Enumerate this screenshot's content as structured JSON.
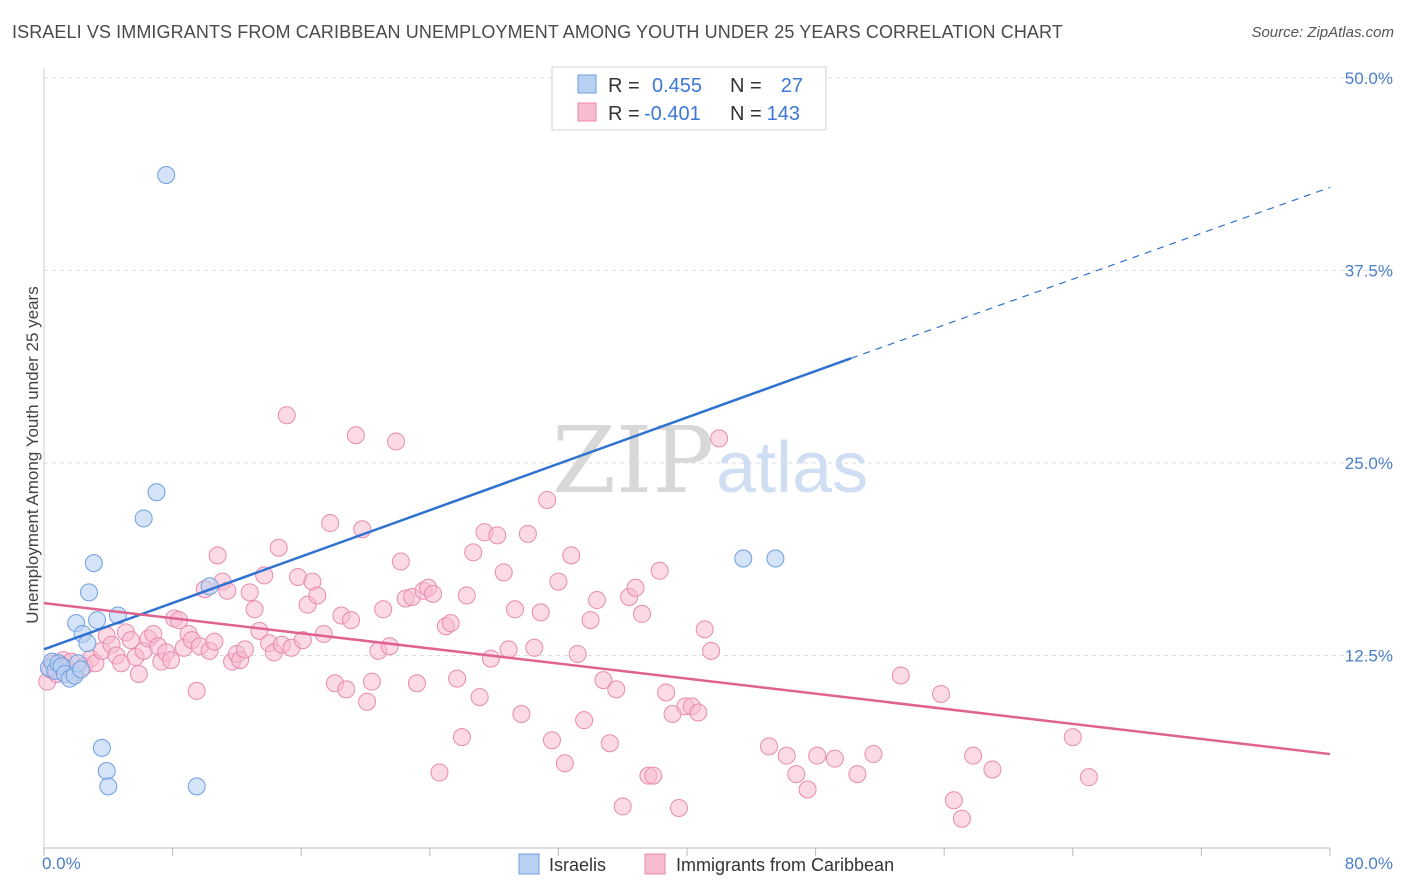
{
  "title": "ISRAELI VS IMMIGRANTS FROM CARIBBEAN UNEMPLOYMENT AMONG YOUTH UNDER 25 YEARS CORRELATION CHART",
  "source": "Source: ZipAtlas.com",
  "watermark": {
    "zip": "ZIP",
    "atlas": "atlas"
  },
  "colors": {
    "israelis_fill": "#b8d0f2",
    "israelis_stroke": "#6f9ee0",
    "israelis_line": "#2f72d0",
    "caribbean_fill": "#f7bcd0",
    "caribbean_stroke": "#e98aae",
    "caribbean_line": "#e0628f",
    "grid": "#dddddd",
    "tick_text": "#4a7fc8"
  },
  "legend": {
    "rows": [
      {
        "r_label": "R =",
        "r_value": "0.455",
        "n_label": "N =",
        "n_value": "27"
      },
      {
        "r_label": "R =",
        "r_value": "-0.401",
        "n_label": "N =",
        "n_value": "143"
      }
    ]
  },
  "chart_data": {
    "type": "scatter",
    "title": "ISRAELI VS IMMIGRANTS FROM CARIBBEAN UNEMPLOYMENT AMONG YOUTH UNDER 25 YEARS CORRELATION CHART",
    "xlabel": "",
    "ylabel": "Unemployment Among Youth under 25 years",
    "xlim": [
      0,
      80
    ],
    "ylim": [
      0,
      50
    ],
    "x_ticks": [
      "0.0%",
      "80.0%"
    ],
    "y_ticks": [
      {
        "value": 12.5,
        "label": "12.5%"
      },
      {
        "value": 25,
        "label": "25.0%"
      },
      {
        "value": 37.5,
        "label": "37.5%"
      },
      {
        "value": 50,
        "label": "50.0%"
      }
    ],
    "grid": true,
    "legend_position": "top-center",
    "series": [
      {
        "name": "Israelis",
        "r": 0.455,
        "n": 27,
        "trend": {
          "x0": 0,
          "y0": 12.9,
          "x1": 50.2,
          "y1": 31.8,
          "dash_to_x": 80,
          "dash_to_y": 42.9
        },
        "points": [
          [
            0.3,
            11.7
          ],
          [
            0.5,
            12.1
          ],
          [
            0.7,
            11.5
          ],
          [
            0.9,
            12.0
          ],
          [
            1.1,
            11.8
          ],
          [
            1.3,
            11.3
          ],
          [
            1.6,
            11.0
          ],
          [
            1.9,
            11.2
          ],
          [
            2.1,
            12.0
          ],
          [
            2.3,
            11.6
          ],
          [
            2.0,
            14.6
          ],
          [
            2.4,
            13.9
          ],
          [
            2.7,
            13.3
          ],
          [
            2.8,
            16.6
          ],
          [
            3.1,
            18.5
          ],
          [
            3.3,
            14.8
          ],
          [
            3.6,
            6.5
          ],
          [
            3.9,
            5.0
          ],
          [
            4.0,
            4.0
          ],
          [
            4.6,
            15.1
          ],
          [
            6.2,
            21.4
          ],
          [
            7.0,
            23.1
          ],
          [
            7.6,
            43.7
          ],
          [
            9.5,
            4.0
          ],
          [
            10.3,
            17.0
          ],
          [
            43.5,
            18.8
          ],
          [
            45.5,
            18.8
          ]
        ]
      },
      {
        "name": "Immigrants from Caribbean",
        "r": -0.401,
        "n": 143,
        "trend": {
          "x0": 0,
          "y0": 15.9,
          "x1": 80,
          "y1": 6.1
        },
        "points": [
          [
            0.2,
            10.8
          ],
          [
            0.4,
            11.6
          ],
          [
            0.6,
            12.0
          ],
          [
            0.8,
            11.3
          ],
          [
            1.0,
            11.9
          ],
          [
            1.2,
            12.2
          ],
          [
            1.4,
            11.7
          ],
          [
            1.7,
            12.1
          ],
          [
            2.0,
            11.4
          ],
          [
            2.5,
            11.8
          ],
          [
            2.9,
            12.3
          ],
          [
            3.2,
            12.0
          ],
          [
            3.6,
            12.8
          ],
          [
            3.9,
            13.8
          ],
          [
            4.2,
            13.2
          ],
          [
            4.5,
            12.5
          ],
          [
            4.8,
            12.0
          ],
          [
            5.1,
            14.0
          ],
          [
            5.4,
            13.5
          ],
          [
            5.7,
            12.4
          ],
          [
            5.9,
            11.3
          ],
          [
            6.2,
            12.8
          ],
          [
            6.5,
            13.6
          ],
          [
            6.8,
            13.9
          ],
          [
            7.1,
            13.1
          ],
          [
            7.3,
            12.1
          ],
          [
            7.6,
            12.7
          ],
          [
            7.9,
            12.2
          ],
          [
            8.1,
            14.9
          ],
          [
            8.4,
            14.8
          ],
          [
            8.7,
            13.0
          ],
          [
            9.0,
            13.9
          ],
          [
            9.2,
            13.5
          ],
          [
            9.5,
            10.2
          ],
          [
            9.7,
            13.1
          ],
          [
            10.0,
            16.8
          ],
          [
            10.3,
            12.8
          ],
          [
            10.6,
            13.4
          ],
          [
            10.8,
            19.0
          ],
          [
            11.1,
            17.3
          ],
          [
            11.4,
            16.7
          ],
          [
            11.7,
            12.1
          ],
          [
            12.0,
            12.6
          ],
          [
            12.2,
            12.2
          ],
          [
            12.5,
            12.9
          ],
          [
            12.8,
            16.6
          ],
          [
            13.1,
            15.5
          ],
          [
            13.4,
            14.1
          ],
          [
            13.7,
            17.7
          ],
          [
            14.0,
            13.3
          ],
          [
            14.3,
            12.7
          ],
          [
            14.6,
            19.5
          ],
          [
            14.8,
            13.2
          ],
          [
            15.1,
            28.1
          ],
          [
            15.4,
            13.0
          ],
          [
            15.8,
            17.6
          ],
          [
            16.1,
            13.5
          ],
          [
            16.4,
            15.8
          ],
          [
            16.7,
            17.3
          ],
          [
            17.0,
            16.4
          ],
          [
            17.4,
            13.9
          ],
          [
            17.8,
            21.1
          ],
          [
            18.1,
            10.7
          ],
          [
            18.5,
            15.1
          ],
          [
            18.8,
            10.3
          ],
          [
            19.1,
            14.8
          ],
          [
            19.4,
            26.8
          ],
          [
            19.8,
            20.7
          ],
          [
            20.1,
            9.5
          ],
          [
            20.4,
            10.8
          ],
          [
            20.8,
            12.8
          ],
          [
            21.1,
            15.5
          ],
          [
            21.5,
            13.1
          ],
          [
            21.9,
            26.4
          ],
          [
            22.2,
            18.6
          ],
          [
            22.5,
            16.2
          ],
          [
            22.9,
            16.3
          ],
          [
            23.2,
            10.7
          ],
          [
            23.6,
            16.7
          ],
          [
            23.9,
            16.9
          ],
          [
            24.2,
            16.5
          ],
          [
            24.6,
            4.9
          ],
          [
            25.0,
            14.4
          ],
          [
            25.3,
            14.6
          ],
          [
            25.7,
            11.0
          ],
          [
            26.0,
            7.2
          ],
          [
            26.3,
            16.4
          ],
          [
            26.7,
            19.2
          ],
          [
            27.1,
            9.8
          ],
          [
            27.4,
            20.5
          ],
          [
            27.8,
            12.3
          ],
          [
            28.2,
            20.3
          ],
          [
            28.6,
            17.9
          ],
          [
            28.9,
            12.9
          ],
          [
            29.3,
            15.5
          ],
          [
            29.7,
            8.7
          ],
          [
            30.1,
            20.4
          ],
          [
            30.5,
            13.0
          ],
          [
            30.9,
            15.3
          ],
          [
            31.3,
            22.6
          ],
          [
            31.6,
            7.0
          ],
          [
            32.0,
            17.3
          ],
          [
            32.4,
            5.5
          ],
          [
            32.8,
            19.0
          ],
          [
            33.2,
            12.6
          ],
          [
            33.6,
            8.3
          ],
          [
            34.0,
            14.8
          ],
          [
            34.4,
            16.1
          ],
          [
            34.8,
            10.9
          ],
          [
            35.2,
            6.8
          ],
          [
            35.6,
            10.3
          ],
          [
            36.0,
            2.7
          ],
          [
            36.4,
            16.3
          ],
          [
            36.8,
            16.9
          ],
          [
            37.2,
            15.2
          ],
          [
            37.6,
            4.7
          ],
          [
            37.9,
            4.7
          ],
          [
            38.3,
            18.0
          ],
          [
            38.7,
            10.1
          ],
          [
            39.1,
            8.7
          ],
          [
            39.5,
            2.6
          ],
          [
            39.9,
            9.2
          ],
          [
            40.3,
            9.2
          ],
          [
            40.7,
            8.8
          ],
          [
            41.1,
            14.2
          ],
          [
            41.5,
            12.8
          ],
          [
            42.0,
            26.6
          ],
          [
            45.1,
            6.6
          ],
          [
            46.2,
            6.0
          ],
          [
            46.8,
            4.8
          ],
          [
            47.5,
            3.8
          ],
          [
            48.1,
            6.0
          ],
          [
            49.2,
            5.8
          ],
          [
            50.6,
            4.8
          ],
          [
            51.6,
            6.1
          ],
          [
            53.3,
            11.2
          ],
          [
            55.8,
            10.0
          ],
          [
            56.6,
            3.1
          ],
          [
            57.1,
            1.9
          ],
          [
            57.8,
            6.0
          ],
          [
            59.0,
            5.1
          ],
          [
            64.0,
            7.2
          ],
          [
            65.0,
            4.6
          ]
        ]
      }
    ]
  },
  "bottom_legend": [
    {
      "label": "Israelis"
    },
    {
      "label": "Immigrants from Caribbean"
    }
  ]
}
